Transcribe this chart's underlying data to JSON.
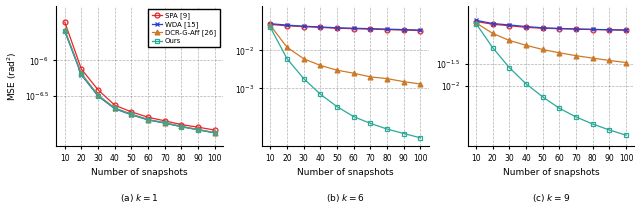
{
  "snapshots": [
    10,
    20,
    30,
    40,
    50,
    60,
    70,
    80,
    90,
    100
  ],
  "panel_titles": [
    "(a) $k = 1$",
    "(b) $k = 6$",
    "(c) $k = 9$"
  ],
  "legend_labels": [
    "SPA [9]",
    "WDA [15]",
    "DCR-G-Aff [26]",
    "Ours"
  ],
  "colors": [
    "#e8252a",
    "#2a3fcc",
    "#cc7a2a",
    "#2aaa99"
  ],
  "markers": [
    "o",
    "x",
    "^",
    "s"
  ],
  "k1": {
    "SPA": [
      3.5e-06,
      7.5e-07,
      3.8e-07,
      2.3e-07,
      1.85e-07,
      1.55e-07,
      1.38e-07,
      1.22e-07,
      1.12e-07,
      1.02e-07
    ],
    "WDA": [
      2.6e-06,
      6.2e-07,
      3.1e-07,
      2.05e-07,
      1.68e-07,
      1.42e-07,
      1.28e-07,
      1.14e-07,
      1.03e-07,
      9.3e-08
    ],
    "DCR": [
      2.7e-06,
      6.5e-07,
      3.2e-07,
      2.1e-07,
      1.72e-07,
      1.44e-07,
      1.3e-07,
      1.15e-07,
      1.04e-07,
      9.4e-08
    ],
    "Ours": [
      2.65e-06,
      6.3e-07,
      3.15e-07,
      2.08e-07,
      1.7e-07,
      1.43e-07,
      1.29e-07,
      1.14e-07,
      1.03e-07,
      9.3e-08
    ],
    "ylim": [
      6e-08,
      6e-06
    ],
    "ytick_vals": [
      1e-06,
      3.16e-07
    ],
    "ytick_labels": [
      "$10^{-6}$",
      "$10^{-6.5}$"
    ],
    "ylabel": "MSE (rad$^2$)"
  },
  "k6": {
    "SPA": [
      0.048,
      0.044,
      0.042,
      0.04,
      0.038,
      0.037,
      0.036,
      0.035,
      0.034,
      0.033
    ],
    "WDA": [
      0.05,
      0.046,
      0.043,
      0.041,
      0.039,
      0.038,
      0.037,
      0.036,
      0.035,
      0.034
    ],
    "DCR": [
      0.045,
      0.012,
      0.006,
      0.004,
      0.003,
      0.0025,
      0.002,
      0.0018,
      0.0015,
      0.0013
    ],
    "Ours": [
      0.04,
      0.006,
      0.0018,
      0.0007,
      0.00033,
      0.00018,
      0.00012,
      8.5e-05,
      6.5e-05,
      5e-05
    ],
    "ylim": [
      3e-05,
      0.15
    ],
    "ytick_vals": [
      0.01,
      0.001
    ],
    "ytick_labels": [
      "$10^{-2}$",
      "$10^{-3}$"
    ],
    "ylabel": ""
  },
  "k9": {
    "SPA": [
      0.3,
      0.26,
      0.24,
      0.22,
      0.21,
      0.205,
      0.2,
      0.196,
      0.193,
      0.19
    ],
    "WDA": [
      0.32,
      0.27,
      0.25,
      0.23,
      0.215,
      0.208,
      0.202,
      0.198,
      0.194,
      0.191
    ],
    "DCR": [
      0.28,
      0.16,
      0.11,
      0.085,
      0.068,
      0.057,
      0.049,
      0.043,
      0.038,
      0.034
    ],
    "Ours": [
      0.27,
      0.075,
      0.026,
      0.011,
      0.0055,
      0.003,
      0.0019,
      0.0013,
      0.00095,
      0.00072
    ],
    "ylim": [
      0.0004,
      0.7
    ],
    "ytick_vals": [
      0.03162,
      0.01
    ],
    "ytick_labels": [
      "$10^{-1.5}$",
      "$10^{-2}$"
    ],
    "ylabel": ""
  }
}
